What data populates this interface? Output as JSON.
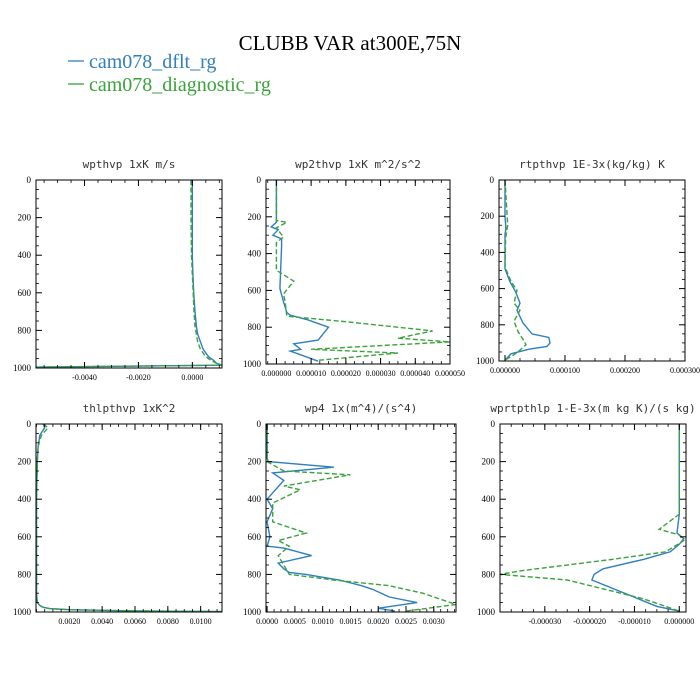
{
  "figure": {
    "title": "CLUBB VAR at300E,75N",
    "legend": [
      {
        "label": "cam078_dflt_rg",
        "color": "#2f7fbf",
        "dash": "solid"
      },
      {
        "label": "cam078_diagnostic_rg",
        "color": "#3aa23a",
        "dash": "dashed"
      }
    ]
  },
  "chart_data": [
    {
      "type": "line",
      "title": "wpthvp  1xK m/s",
      "xlim": [
        -0.0058,
        0.0011
      ],
      "ylim": [
        1000,
        0
      ],
      "grid": false,
      "xticks": [
        -0.004,
        -0.002,
        0.0
      ],
      "xticklabels": [
        "-0.0040",
        "-0.0020",
        "0.0000"
      ],
      "yticks": [
        0,
        200,
        400,
        600,
        800,
        1000
      ],
      "yticklabels": [
        "0",
        "200",
        "400",
        "600",
        "800",
        "1000"
      ],
      "series": [
        {
          "name": "cam078_dflt_rg",
          "x": [
            0.0,
            0.0,
            0.0,
            2e-05,
            5e-05,
            0.0001,
            0.00015,
            0.0002,
            0.0003,
            0.0004,
            0.0006,
            0.0008,
            0.0009,
            0.0011,
            -0.0058
          ],
          "y": [
            0,
            200,
            400,
            500,
            600,
            700,
            780,
            820,
            860,
            900,
            940,
            960,
            975,
            985,
            995
          ]
        },
        {
          "name": "cam078_diagnostic_rg",
          "x": [
            -5e-05,
            -5e-05,
            -3e-05,
            0.0,
            3e-05,
            6e-05,
            0.0001,
            0.00015,
            0.0002,
            0.0003,
            0.0005,
            0.0007,
            0.0009,
            0.0011,
            -0.0058
          ],
          "y": [
            0,
            200,
            400,
            500,
            600,
            700,
            780,
            820,
            860,
            900,
            940,
            960,
            975,
            985,
            995
          ]
        }
      ]
    },
    {
      "type": "line",
      "title": "wp2thvp  1xK m^2/s^2",
      "xlim": [
        -3e-06,
        5e-05
      ],
      "ylim": [
        1000,
        0
      ],
      "grid": false,
      "xticks": [
        0.0,
        1e-05,
        2e-05,
        3e-05,
        4e-05,
        5e-05
      ],
      "xticklabels": [
        "0.000000",
        "0.000010",
        "0.000020",
        "0.000030",
        "0.000040",
        "0.000050"
      ],
      "yticks": [
        0,
        200,
        400,
        600,
        800,
        1000
      ],
      "yticklabels": [
        "0",
        "200",
        "400",
        "600",
        "800",
        "1000"
      ],
      "series": [
        {
          "name": "cam078_dflt_rg",
          "x": [
            0.0,
            0.0,
            -1.5e-06,
            5e-07,
            -1e-06,
            1.5e-06,
            1.5e-06,
            1e-06,
            2e-06,
            3e-06,
            4e-06,
            9e-06,
            1.5e-05,
            1.2e-05,
            5e-06,
            7e-06,
            4e-06,
            7e-06,
            1.2e-05
          ],
          "y": [
            0,
            230,
            255,
            270,
            300,
            320,
            360,
            590,
            660,
            720,
            735,
            760,
            800,
            870,
            890,
            920,
            930,
            950,
            985
          ]
        },
        {
          "name": "cam078_diagnostic_rg",
          "x": [
            0.0,
            0.0,
            3e-06,
            0.0,
            2e-06,
            0.0,
            0.0,
            5e-06,
            2e-06,
            2.5e-06,
            3e-06,
            2e-05,
            4.5e-05,
            3.5e-05,
            5e-05,
            1e-05,
            3.5e-05,
            1.2e-05
          ],
          "y": [
            0,
            220,
            230,
            260,
            310,
            340,
            490,
            550,
            620,
            660,
            740,
            770,
            820,
            860,
            880,
            920,
            940,
            980
          ]
        }
      ]
    },
    {
      "type": "line",
      "title": "rtpthvp  1E-3x(kg/kg) K",
      "xlim": [
        -1e-05,
        0.0003
      ],
      "ylim": [
        1000,
        0
      ],
      "grid": false,
      "xticks": [
        0.0,
        0.0001,
        0.0002,
        0.0003
      ],
      "xticklabels": [
        "0.000000",
        "0.000100",
        "0.000200",
        "0.000300"
      ],
      "yticks": [
        0,
        200,
        400,
        600,
        800,
        1000
      ],
      "yticklabels": [
        "0",
        "200",
        "400",
        "600",
        "800",
        "1000"
      ],
      "series": [
        {
          "name": "cam078_dflt_rg",
          "x": [
            0.0,
            0.0,
            1.5e-06,
            0.0,
            0.0,
            8e-06,
            1.8e-05,
            2.5e-05,
            2e-05,
            3e-05,
            4.5e-05,
            7.3e-05,
            7.5e-05,
            7e-05,
            4e-05,
            1e-05,
            0.0
          ],
          "y": [
            0,
            200,
            270,
            300,
            490,
            560,
            620,
            680,
            720,
            790,
            850,
            870,
            900,
            920,
            935,
            960,
            995
          ]
        },
        {
          "name": "cam078_diagnostic_rg",
          "x": [
            0.0,
            4.5e-06,
            1e-06,
            0.0,
            1e-05,
            2e-05,
            1.5e-05,
            2.5e-05,
            1.5e-05,
            2.2e-05,
            3e-05,
            3.5e-05,
            2.5e-05,
            1.5e-05,
            0.0
          ],
          "y": [
            0,
            250,
            320,
            480,
            560,
            610,
            680,
            720,
            780,
            840,
            880,
            910,
            940,
            965,
            995
          ]
        }
      ]
    },
    {
      "type": "line",
      "title": "thlpthvp  1xK^2",
      "xlim": [
        -3e-05,
        0.0113
      ],
      "ylim": [
        1000,
        0
      ],
      "grid": false,
      "xticks": [
        0.002,
        0.004,
        0.006,
        0.008,
        0.01
      ],
      "xticklabels": [
        "0.0020",
        "0.0040",
        "0.0060",
        "0.0080",
        "0.0100"
      ],
      "yticks": [
        0,
        200,
        400,
        600,
        800,
        1000
      ],
      "yticklabels": [
        "0",
        "200",
        "400",
        "600",
        "800",
        "1000"
      ],
      "series": [
        {
          "name": "cam078_dflt_rg",
          "x": [
            0.0004,
            0.0005,
            0.0002,
            0.0001,
            5e-05,
            0.0,
            0.0,
            5e-05,
            0.0002,
            0.0004,
            0.0008,
            0.002,
            0.006,
            0.0113
          ],
          "y": [
            0,
            20,
            60,
            120,
            200,
            400,
            900,
            950,
            965,
            975,
            982,
            988,
            994,
            998
          ]
        },
        {
          "name": "cam078_diagnostic_rg",
          "x": [
            0.0004,
            0.0007,
            0.0003,
            0.0001,
            5e-05,
            0.0,
            0.0,
            5e-05,
            0.0002,
            0.0004,
            0.0008,
            0.002,
            0.006,
            0.0113
          ],
          "y": [
            0,
            20,
            60,
            120,
            200,
            400,
            900,
            950,
            965,
            975,
            982,
            988,
            994,
            998
          ]
        }
      ]
    },
    {
      "type": "line",
      "title": "wp4  1x(m^4)/(s^4)",
      "xlim": [
        -2e-05,
        0.0034
      ],
      "ylim": [
        1000,
        0
      ],
      "grid": false,
      "xticks": [
        0.0,
        0.0005,
        0.001,
        0.0015,
        0.002,
        0.0025,
        0.003
      ],
      "xticklabels": [
        "0.0000",
        "0.0005",
        "0.0010",
        "0.0015",
        "0.0020",
        "0.0025",
        "0.0030"
      ],
      "yticks": [
        0,
        200,
        400,
        600,
        800,
        1000
      ],
      "yticklabels": [
        "0",
        "200",
        "400",
        "600",
        "800",
        "1000"
      ],
      "series": [
        {
          "name": "cam078_dflt_rg",
          "x": [
            0.0,
            0.0,
            2e-05,
            0.0012,
            0.0001,
            0.0003,
            0.0,
            0.0001,
            0.0,
            5e-05,
            0.0,
            0.0003,
            0.0008,
            0.0002,
            0.0003,
            0.0004,
            0.0007,
            0.0013,
            0.0017,
            0.0019,
            0.0022,
            0.0027,
            0.002,
            0.0023
          ],
          "y": [
            0,
            180,
            200,
            230,
            260,
            300,
            400,
            450,
            520,
            600,
            650,
            660,
            700,
            740,
            770,
            790,
            800,
            830,
            860,
            880,
            920,
            950,
            980,
            995
          ]
        },
        {
          "name": "cam078_diagnostic_rg",
          "x": [
            0.0,
            0.0,
            0.0003,
            0.0015,
            0.0003,
            0.0006,
            0.0001,
            0.0001,
            0.0007,
            0.0002,
            0.0004,
            0.0002,
            0.0004,
            0.0012,
            0.0022,
            0.0028,
            0.0034,
            0.0025
          ],
          "y": [
            0,
            200,
            250,
            270,
            330,
            350,
            420,
            520,
            580,
            620,
            650,
            700,
            800,
            830,
            860,
            900,
            960,
            995
          ]
        }
      ]
    },
    {
      "type": "line",
      "title": "wprtpthlp  1-E-3x(m kg K)/(s kg)",
      "xlim": [
        -4e-05,
        1.5e-06
      ],
      "ylim": [
        1000,
        0
      ],
      "grid": false,
      "xticks": [
        -3e-05,
        -2e-05,
        -1e-05,
        0.0
      ],
      "xticklabels": [
        "-0.000030",
        "-0.000020",
        "-0.000010",
        "0.000000"
      ],
      "yticks": [
        0,
        200,
        400,
        600,
        800,
        1000
      ],
      "yticklabels": [
        "0",
        "200",
        "400",
        "600",
        "800",
        "1000"
      ],
      "series": [
        {
          "name": "cam078_dflt_rg",
          "x": [
            0.0,
            0.0,
            -5e-07,
            1e-06,
            0.0,
            -2e-06,
            -8e-06,
            -1.7e-05,
            -1.9e-05,
            -1.95e-05,
            -5e-06,
            0.0
          ],
          "y": [
            0,
            480,
            580,
            610,
            640,
            680,
            720,
            770,
            800,
            830,
            970,
            995
          ]
        },
        {
          "name": "cam078_diagnostic_rg",
          "x": [
            0.0,
            0.0,
            -4.5e-06,
            0.0,
            1e-06,
            -3e-06,
            -1.5e-05,
            -3.5e-05,
            -4e-05,
            -2.5e-05,
            -8e-06,
            0.0
          ],
          "y": [
            0,
            480,
            560,
            590,
            620,
            680,
            720,
            780,
            800,
            830,
            930,
            995
          ]
        }
      ]
    }
  ]
}
